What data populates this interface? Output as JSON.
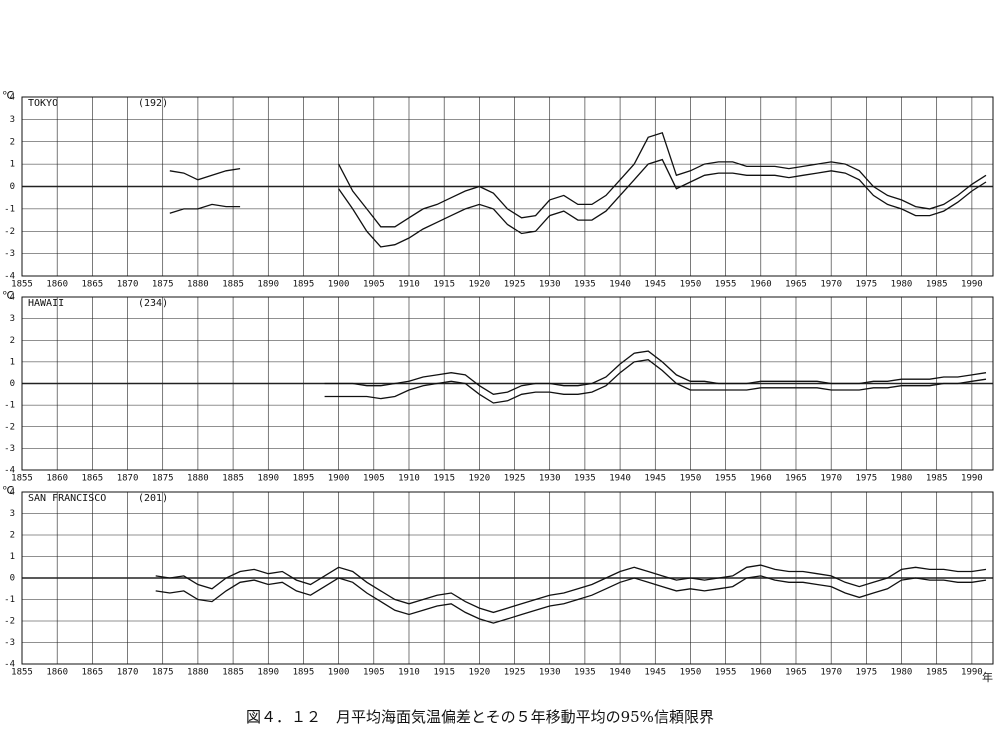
{
  "caption": "図４．１２　月平均海面気温偏差とその５年移動平均の95%信頼限界",
  "chart_data": [
    {
      "type": "line",
      "title": "TOKYO",
      "subtitle": "(192)",
      "y_label": "℃",
      "xlim": [
        1855,
        1993
      ],
      "ylim": [
        -4,
        4
      ],
      "xticks": [
        1855,
        1860,
        1865,
        1870,
        1875,
        1880,
        1885,
        1890,
        1895,
        1900,
        1905,
        1910,
        1915,
        1920,
        1925,
        1930,
        1935,
        1940,
        1945,
        1950,
        1955,
        1960,
        1965,
        1970,
        1975,
        1980,
        1985,
        1990
      ],
      "yticks": [
        -4,
        -3,
        -2,
        -1,
        0,
        1,
        2,
        3,
        4
      ],
      "grid": true,
      "color": "#111111",
      "x": [
        1876,
        1878,
        1880,
        1882,
        1884,
        1886,
        1888,
        1890,
        1892,
        1894,
        1896,
        1898,
        1900,
        1902,
        1904,
        1906,
        1908,
        1910,
        1912,
        1914,
        1916,
        1918,
        1920,
        1922,
        1924,
        1926,
        1928,
        1930,
        1932,
        1934,
        1936,
        1938,
        1940,
        1942,
        1944,
        1946,
        1948,
        1950,
        1952,
        1954,
        1956,
        1958,
        1960,
        1962,
        1964,
        1966,
        1968,
        1970,
        1972,
        1974,
        1976,
        1978,
        1980,
        1982,
        1984,
        1986,
        1988,
        1990,
        1992
      ],
      "series": [
        {
          "color": "#111111",
          "values": [
            0.7,
            0.6,
            0.3,
            0.5,
            0.7,
            0.8,
            null,
            null,
            null,
            null,
            null,
            null,
            1.0,
            -0.2,
            -1.0,
            -1.8,
            -1.8,
            -1.4,
            -1.0,
            -0.8,
            -0.5,
            -0.2,
            0.0,
            -0.3,
            -1.0,
            -1.4,
            -1.3,
            -0.6,
            -0.4,
            -0.8,
            -0.8,
            -0.4,
            0.3,
            1.0,
            2.2,
            2.4,
            0.5,
            0.7,
            1.0,
            1.1,
            1.1,
            0.9,
            0.9,
            0.9,
            0.8,
            0.9,
            1.0,
            1.1,
            1.0,
            0.7,
            0.0,
            -0.4,
            -0.6,
            -0.9,
            -1.0,
            -0.8,
            -0.4,
            0.1,
            0.5
          ]
        },
        {
          "color": "#111111",
          "values": [
            -1.2,
            -1.0,
            -1.0,
            -0.8,
            -0.9,
            -0.9,
            null,
            null,
            null,
            null,
            null,
            null,
            -0.1,
            -1.0,
            -2.0,
            -2.7,
            -2.6,
            -2.3,
            -1.9,
            -1.6,
            -1.3,
            -1.0,
            -0.8,
            -1.0,
            -1.7,
            -2.1,
            -2.0,
            -1.3,
            -1.1,
            -1.5,
            -1.5,
            -1.1,
            -0.4,
            0.3,
            1.0,
            1.2,
            -0.1,
            0.2,
            0.5,
            0.6,
            0.6,
            0.5,
            0.5,
            0.5,
            0.4,
            0.5,
            0.6,
            0.7,
            0.6,
            0.3,
            -0.4,
            -0.8,
            -1.0,
            -1.3,
            -1.3,
            -1.1,
            -0.7,
            -0.2,
            0.2
          ]
        }
      ]
    },
    {
      "type": "line",
      "title": "HAWAII",
      "subtitle": "(234)",
      "y_label": "℃",
      "xlim": [
        1855,
        1993
      ],
      "ylim": [
        -4,
        4
      ],
      "xticks": [
        1855,
        1860,
        1865,
        1870,
        1875,
        1880,
        1885,
        1890,
        1895,
        1900,
        1905,
        1910,
        1915,
        1920,
        1925,
        1930,
        1935,
        1940,
        1945,
        1950,
        1955,
        1960,
        1965,
        1970,
        1975,
        1980,
        1985,
        1990
      ],
      "yticks": [
        -4,
        -3,
        -2,
        -1,
        0,
        1,
        2,
        3,
        4
      ],
      "grid": true,
      "color": "#111111",
      "x": [
        1898,
        1900,
        1902,
        1904,
        1906,
        1908,
        1910,
        1912,
        1914,
        1916,
        1918,
        1920,
        1922,
        1924,
        1926,
        1928,
        1930,
        1932,
        1934,
        1936,
        1938,
        1940,
        1942,
        1944,
        1946,
        1948,
        1950,
        1952,
        1954,
        1956,
        1958,
        1960,
        1962,
        1964,
        1966,
        1968,
        1970,
        1972,
        1974,
        1976,
        1978,
        1980,
        1982,
        1984,
        1986,
        1988,
        1990,
        1992
      ],
      "series": [
        {
          "color": "#111111",
          "values": [
            0.0,
            0.0,
            0.0,
            -0.1,
            -0.1,
            0.0,
            0.1,
            0.3,
            0.4,
            0.5,
            0.4,
            -0.1,
            -0.5,
            -0.4,
            -0.1,
            0.0,
            0.0,
            -0.1,
            -0.1,
            0.0,
            0.3,
            0.9,
            1.4,
            1.5,
            1.0,
            0.4,
            0.1,
            0.1,
            0.0,
            0.0,
            0.0,
            0.1,
            0.1,
            0.1,
            0.1,
            0.1,
            0.0,
            0.0,
            0.0,
            0.1,
            0.1,
            0.2,
            0.2,
            0.2,
            0.3,
            0.3,
            0.4,
            0.5
          ]
        },
        {
          "color": "#111111",
          "values": [
            -0.6,
            -0.6,
            -0.6,
            -0.6,
            -0.7,
            -0.6,
            -0.3,
            -0.1,
            0.0,
            0.1,
            0.0,
            -0.5,
            -0.9,
            -0.8,
            -0.5,
            -0.4,
            -0.4,
            -0.5,
            -0.5,
            -0.4,
            -0.1,
            0.5,
            1.0,
            1.1,
            0.6,
            0.0,
            -0.3,
            -0.3,
            -0.3,
            -0.3,
            -0.3,
            -0.2,
            -0.2,
            -0.2,
            -0.2,
            -0.2,
            -0.3,
            -0.3,
            -0.3,
            -0.2,
            -0.2,
            -0.1,
            -0.1,
            -0.1,
            0.0,
            0.0,
            0.1,
            0.2
          ]
        }
      ]
    },
    {
      "type": "line",
      "title": "SAN FRANCISCO",
      "subtitle": "(201)",
      "y_label": "℃",
      "x_label": "年",
      "xlim": [
        1855,
        1993
      ],
      "ylim": [
        -4,
        4
      ],
      "xticks": [
        1855,
        1860,
        1865,
        1870,
        1875,
        1880,
        1885,
        1890,
        1895,
        1900,
        1905,
        1910,
        1915,
        1920,
        1925,
        1930,
        1935,
        1940,
        1945,
        1950,
        1955,
        1960,
        1965,
        1970,
        1975,
        1980,
        1985,
        1990
      ],
      "yticks": [
        -4,
        -3,
        -2,
        -1,
        0,
        1,
        2,
        3,
        4
      ],
      "grid": true,
      "color": "#111111",
      "x": [
        1874,
        1876,
        1878,
        1880,
        1882,
        1884,
        1886,
        1888,
        1890,
        1892,
        1894,
        1896,
        1898,
        1900,
        1902,
        1904,
        1906,
        1908,
        1910,
        1912,
        1914,
        1916,
        1918,
        1920,
        1922,
        1924,
        1926,
        1928,
        1930,
        1932,
        1934,
        1936,
        1938,
        1940,
        1942,
        1944,
        1946,
        1948,
        1950,
        1952,
        1954,
        1956,
        1958,
        1960,
        1962,
        1964,
        1966,
        1968,
        1970,
        1972,
        1974,
        1976,
        1978,
        1980,
        1982,
        1984,
        1986,
        1988,
        1990,
        1992
      ],
      "series": [
        {
          "color": "#111111",
          "values": [
            0.1,
            0.0,
            0.1,
            -0.3,
            -0.5,
            0.0,
            0.3,
            0.4,
            0.2,
            0.3,
            -0.1,
            -0.3,
            0.1,
            0.5,
            0.3,
            -0.2,
            -0.6,
            -1.0,
            -1.2,
            -1.0,
            -0.8,
            -0.7,
            -1.1,
            -1.4,
            -1.6,
            -1.4,
            -1.2,
            -1.0,
            -0.8,
            -0.7,
            -0.5,
            -0.3,
            0.0,
            0.3,
            0.5,
            0.3,
            0.1,
            -0.1,
            0.0,
            -0.1,
            0.0,
            0.1,
            0.5,
            0.6,
            0.4,
            0.3,
            0.3,
            0.2,
            0.1,
            -0.2,
            -0.4,
            -0.2,
            0.0,
            0.4,
            0.5,
            0.4,
            0.4,
            0.3,
            0.3,
            0.4
          ]
        },
        {
          "color": "#111111",
          "values": [
            -0.6,
            -0.7,
            -0.6,
            -1.0,
            -1.1,
            -0.6,
            -0.2,
            -0.1,
            -0.3,
            -0.2,
            -0.6,
            -0.8,
            -0.4,
            0.0,
            -0.2,
            -0.7,
            -1.1,
            -1.5,
            -1.7,
            -1.5,
            -1.3,
            -1.2,
            -1.6,
            -1.9,
            -2.1,
            -1.9,
            -1.7,
            -1.5,
            -1.3,
            -1.2,
            -1.0,
            -0.8,
            -0.5,
            -0.2,
            0.0,
            -0.2,
            -0.4,
            -0.6,
            -0.5,
            -0.6,
            -0.5,
            -0.4,
            0.0,
            0.1,
            -0.1,
            -0.2,
            -0.2,
            -0.3,
            -0.4,
            -0.7,
            -0.9,
            -0.7,
            -0.5,
            -0.1,
            0.0,
            -0.1,
            -0.1,
            -0.2,
            -0.2,
            -0.1
          ]
        }
      ]
    }
  ]
}
